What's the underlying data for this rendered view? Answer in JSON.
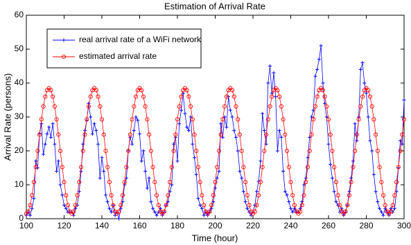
{
  "chart_data": {
    "type": "line",
    "title": "Estimation of Arrival Rate",
    "xlabel": "Time (hour)",
    "ylabel": "Arrival Rate (persons)",
    "x": [
      100,
      101,
      102,
      103,
      104,
      105,
      106,
      107,
      108,
      109,
      110,
      111,
      112,
      113,
      114,
      115,
      116,
      117,
      118,
      119,
      120,
      121,
      122,
      123,
      124,
      125,
      126,
      127,
      128,
      129,
      130,
      131,
      132,
      133,
      134,
      135,
      136,
      137,
      138,
      139,
      140,
      141,
      142,
      143,
      144,
      145,
      146,
      147,
      148,
      149,
      150,
      151,
      152,
      153,
      154,
      155,
      156,
      157,
      158,
      159,
      160,
      161,
      162,
      163,
      164,
      165,
      166,
      167,
      168,
      169,
      170,
      171,
      172,
      173,
      174,
      175,
      176,
      177,
      178,
      179,
      180,
      181,
      182,
      183,
      184,
      185,
      186,
      187,
      188,
      189,
      190,
      191,
      192,
      193,
      194,
      195,
      196,
      197,
      198,
      199,
      200,
      201,
      202,
      203,
      204,
      205,
      206,
      207,
      208,
      209,
      210,
      211,
      212,
      213,
      214,
      215,
      216,
      217,
      218,
      219,
      220,
      221,
      222,
      223,
      224,
      225,
      226,
      227,
      228,
      229,
      230,
      231,
      232,
      233,
      234,
      235,
      236,
      237,
      238,
      239,
      240,
      241,
      242,
      243,
      244,
      245,
      246,
      247,
      248,
      249,
      250,
      251,
      252,
      253,
      254,
      255,
      256,
      257,
      258,
      259,
      260,
      261,
      262,
      263,
      264,
      265,
      266,
      267,
      268,
      269,
      270,
      271,
      272,
      273,
      274,
      275,
      276,
      277,
      278,
      279,
      280,
      281,
      282,
      283,
      284,
      285,
      286,
      287,
      288,
      289,
      290,
      291,
      292,
      293,
      294,
      295,
      296,
      297,
      298,
      299,
      300
    ],
    "series": [
      {
        "name": "real arrival rate of a WiFi network",
        "color": "#0000ff",
        "marker": "+",
        "values": [
          1,
          2,
          1,
          3,
          6,
          17,
          15,
          25,
          28,
          19,
          22,
          25,
          27,
          24,
          28,
          22,
          14,
          17,
          10,
          7,
          4,
          3,
          2,
          2,
          2,
          1,
          3,
          4,
          8,
          14,
          22,
          26,
          29,
          34,
          30,
          25,
          28,
          26,
          22,
          12,
          18,
          14,
          7,
          5,
          3,
          2,
          4,
          1,
          2,
          0,
          3,
          5,
          10,
          12,
          20,
          24,
          22,
          26,
          30,
          29,
          25,
          17,
          20,
          14,
          9,
          12,
          5,
          3,
          2,
          1,
          2,
          3,
          1,
          2,
          4,
          5,
          8,
          10,
          22,
          24,
          17,
          28,
          32,
          37,
          31,
          27,
          26,
          30,
          22,
          18,
          13,
          6,
          4,
          3,
          1,
          2,
          1,
          2,
          3,
          5,
          9,
          12,
          14,
          28,
          24,
          30,
          27,
          36,
          32,
          30,
          26,
          24,
          20,
          14,
          12,
          8,
          5,
          3,
          2,
          1,
          2,
          4,
          8,
          11,
          17,
          31,
          26,
          22,
          40,
          45,
          37,
          43,
          36,
          20,
          26,
          24,
          14,
          8,
          7,
          5,
          3,
          2,
          3,
          2,
          2,
          3,
          5,
          10,
          12,
          18,
          24,
          30,
          32,
          42,
          44,
          47,
          51,
          40,
          34,
          30,
          22,
          16,
          12,
          8,
          5,
          4,
          2,
          3,
          1,
          2,
          4,
          8,
          12,
          17,
          28,
          23,
          30,
          44,
          46,
          40,
          37,
          30,
          23,
          20,
          13,
          8,
          5,
          3,
          2,
          1,
          3,
          2,
          1,
          3,
          2,
          3,
          8,
          15,
          23,
          22,
          35
        ]
      },
      {
        "name": "estimated arrival rate",
        "color": "#ff0000",
        "marker": "o",
        "values": [
          1.5,
          2.1,
          4.0,
          6.9,
          10.8,
          15.2,
          20.0,
          24.8,
          29.3,
          33.1,
          36.0,
          37.9,
          38.5,
          37.9,
          36.0,
          33.1,
          29.3,
          24.8,
          20.0,
          15.2,
          10.8,
          6.9,
          4.0,
          2.1,
          1.5,
          2.1,
          4.0,
          6.9,
          10.8,
          15.2,
          20.0,
          24.8,
          29.3,
          33.1,
          36.0,
          37.9,
          38.5,
          37.9,
          36.0,
          33.1,
          29.3,
          24.8,
          20.0,
          15.2,
          10.8,
          6.9,
          4.0,
          2.1,
          1.5,
          2.1,
          4.0,
          6.9,
          10.8,
          15.2,
          20.0,
          24.8,
          29.3,
          33.1,
          36.0,
          37.9,
          38.5,
          37.9,
          36.0,
          33.1,
          29.3,
          24.8,
          20.0,
          15.2,
          10.8,
          6.9,
          4.0,
          2.1,
          1.5,
          2.1,
          4.0,
          6.9,
          10.8,
          15.2,
          20.0,
          24.8,
          29.3,
          33.1,
          36.0,
          37.9,
          38.5,
          37.9,
          36.0,
          33.1,
          29.3,
          24.8,
          20.0,
          15.2,
          10.8,
          6.9,
          4.0,
          2.1,
          1.5,
          2.1,
          4.0,
          6.9,
          10.8,
          15.2,
          20.0,
          24.8,
          29.3,
          33.1,
          36.0,
          37.9,
          38.5,
          37.9,
          36.0,
          33.1,
          29.3,
          24.8,
          20.0,
          15.2,
          10.8,
          6.9,
          4.0,
          2.1,
          1.5,
          2.1,
          4.0,
          6.9,
          10.8,
          15.2,
          20.0,
          24.8,
          29.3,
          33.1,
          36.0,
          37.9,
          38.5,
          37.9,
          36.0,
          33.1,
          29.3,
          24.8,
          20.0,
          15.2,
          10.8,
          6.9,
          4.0,
          2.1,
          1.5,
          2.1,
          4.0,
          6.9,
          10.8,
          15.2,
          20.0,
          24.8,
          29.3,
          33.1,
          36.0,
          37.9,
          38.5,
          37.9,
          36.0,
          33.1,
          29.3,
          24.8,
          20.0,
          15.2,
          10.8,
          6.9,
          4.0,
          2.1,
          1.5,
          2.1,
          4.0,
          6.9,
          10.8,
          15.2,
          20.0,
          24.8,
          29.3,
          33.1,
          36.0,
          37.9,
          38.5,
          37.9,
          36.0,
          33.1,
          29.3,
          24.8,
          20.0,
          15.2,
          10.8,
          6.9,
          4.0,
          2.1,
          1.5,
          2.1,
          4.0,
          6.9,
          10.8,
          15.2,
          20.0,
          24.8,
          29.3
        ]
      }
    ],
    "xlim": [
      100,
      300
    ],
    "xticks": [
      100,
      120,
      140,
      160,
      180,
      200,
      220,
      240,
      260,
      280,
      300
    ],
    "ylim": [
      0,
      60
    ],
    "yticks": [
      0,
      10,
      20,
      30,
      40,
      50,
      60
    ],
    "legend": "upper-left"
  }
}
